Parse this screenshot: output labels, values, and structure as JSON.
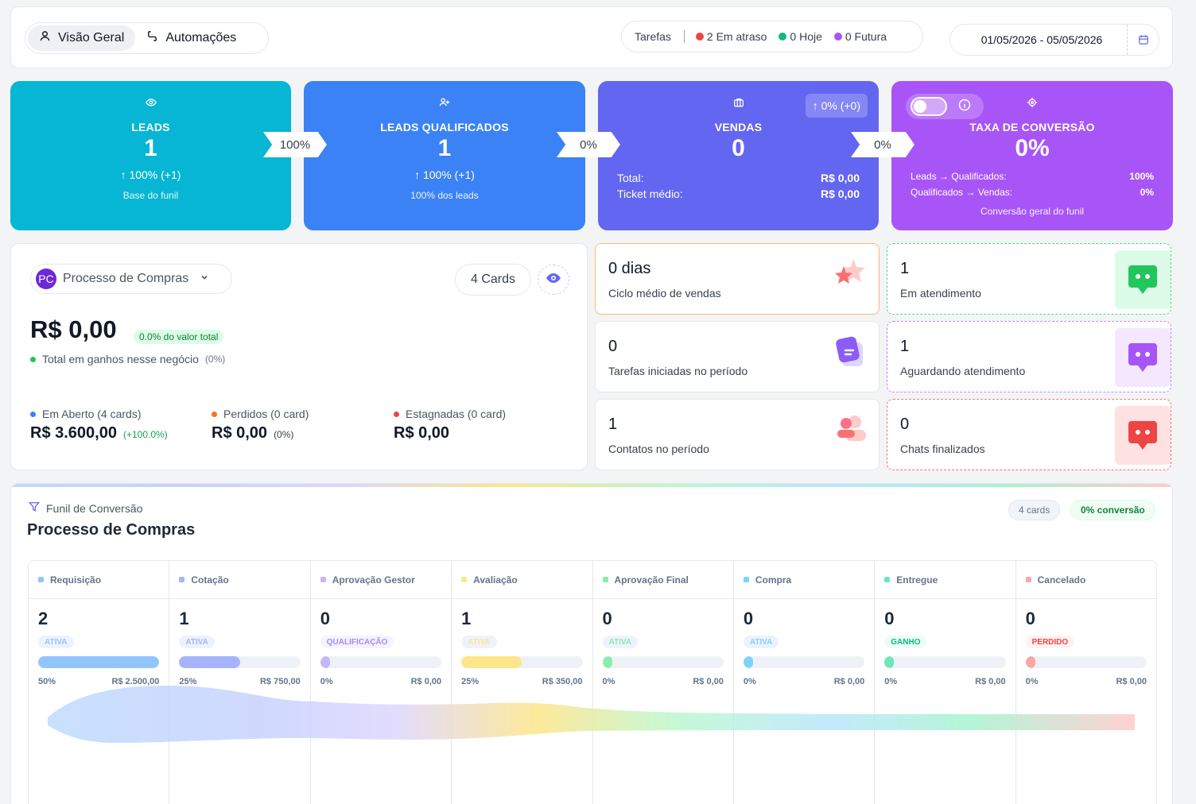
{
  "tabs": [
    {
      "label": "Visão Geral",
      "icon": "user-icon",
      "active": true
    },
    {
      "label": "Automações",
      "icon": "workflow-icon",
      "active": false
    }
  ],
  "tasks": {
    "label": "Tarefas",
    "late": {
      "text": "2 Em atraso",
      "color": "#ef4444"
    },
    "today": {
      "text": "0 Hoje",
      "color": "#10b981"
    },
    "future": {
      "text": "0 Futura",
      "color": "#a855f7"
    }
  },
  "date_range": "01/05/2026 - 05/05/2026",
  "kpis": {
    "leads": {
      "title": "LEADS",
      "value": "1",
      "change": "↑ 100% (+1)",
      "sub": "Base do funil",
      "color": "#06b6d4"
    },
    "arrow1": "100%",
    "qualified": {
      "title": "LEADS QUALIFICADOS",
      "value": "1",
      "change": "↑ 100% (+1)",
      "sub": "100% dos leads",
      "color": "#3b82f6"
    },
    "arrow2": "0%",
    "sales": {
      "title": "VENDAS",
      "value": "0",
      "badge": "↑ 0% (+0)",
      "total_label": "Total:",
      "total_value": "R$ 0,00",
      "ticket_label": "Ticket médio:",
      "ticket_value": "R$ 0,00",
      "color": "#6366f1"
    },
    "arrow3": "0%",
    "conversion": {
      "title": "TAXA DE CONVERSÃO",
      "value": "0%",
      "row1_label": "Leads → Qualificados:",
      "row1_value": "100%",
      "row2_label": "Qualificados → Vendas:",
      "row2_value": "0%",
      "sub": "Conversão geral do funil",
      "color": "#a855f7"
    }
  },
  "process": {
    "initials": "PC",
    "name": "Processo de Compras",
    "cards_label": "4 Cards",
    "total": "R$ 0,00",
    "percent_badge": "0.0% do valor total",
    "gains_label": "Total em ganhos nesse negócio",
    "gains_pct": "(0%)",
    "open": {
      "label": "Em Aberto (4 cards)",
      "value": "R$ 3.600,00",
      "extra": "(+100.0%)"
    },
    "lost": {
      "label": "Perdidos (0 card)",
      "value": "R$ 0,00",
      "extra": "(0%)"
    },
    "stagnant": {
      "label": "Estagnadas (0 card)",
      "value": "R$ 0,00"
    }
  },
  "metrics": [
    {
      "value": "0 dias",
      "label": "Ciclo médio de vendas",
      "icon": "star-icon"
    },
    {
      "value": "0",
      "label": "Tarefas iniciadas no período",
      "icon": "tasks-icon"
    },
    {
      "value": "1",
      "label": "Contatos no período",
      "icon": "contacts-icon"
    }
  ],
  "chats": [
    {
      "value": "1",
      "label": "Em atendimento",
      "color": "#22c55e"
    },
    {
      "value": "1",
      "label": "Aguardando atendimento",
      "color": "#a855f7"
    },
    {
      "value": "0",
      "label": "Chats finalizados",
      "color": "#ef4444"
    }
  ],
  "funnel": {
    "header": "Funil de Conversão",
    "title": "Processo de Compras",
    "cards_badge": "4 cards",
    "conversion_badge": "0% conversão",
    "stages": [
      {
        "name": "Requisição",
        "count": "2",
        "tag": "ATIVA",
        "pct": "50%",
        "value": "R$ 2.500,00",
        "fill": 1.0,
        "color": "#93c5fd"
      },
      {
        "name": "Cotação",
        "count": "1",
        "tag": "ATIVA",
        "pct": "25%",
        "value": "R$ 750,00",
        "fill": 0.5,
        "color": "#a5b4fc"
      },
      {
        "name": "Aprovação Gestor",
        "count": "0",
        "tag": "QUALIFICAÇÃO",
        "pct": "0%",
        "value": "R$ 0,00",
        "fill": 0.0,
        "color": "#c4b5fd"
      },
      {
        "name": "Avaliação",
        "count": "1",
        "tag": "ATIVA",
        "pct": "25%",
        "value": "R$ 350,00",
        "fill": 0.5,
        "color": "#fde68a"
      },
      {
        "name": "Aprovação Final",
        "count": "0",
        "tag": "ATIVA",
        "pct": "0%",
        "value": "R$ 0,00",
        "fill": 0.0,
        "color": "#86efac"
      },
      {
        "name": "Compra",
        "count": "0",
        "tag": "ATIVA",
        "pct": "0%",
        "value": "R$ 0,00",
        "fill": 0.0,
        "color": "#7dd3fc"
      },
      {
        "name": "Entregue",
        "count": "0",
        "tag": "GANHO",
        "pct": "0%",
        "value": "R$ 0,00",
        "fill": 0.0,
        "color": "#6ee7b7"
      },
      {
        "name": "Cancelado",
        "count": "0",
        "tag": "PERDIDO",
        "pct": "0%",
        "value": "R$ 0,00",
        "fill": 0.0,
        "color": "#fca5a5"
      }
    ]
  }
}
